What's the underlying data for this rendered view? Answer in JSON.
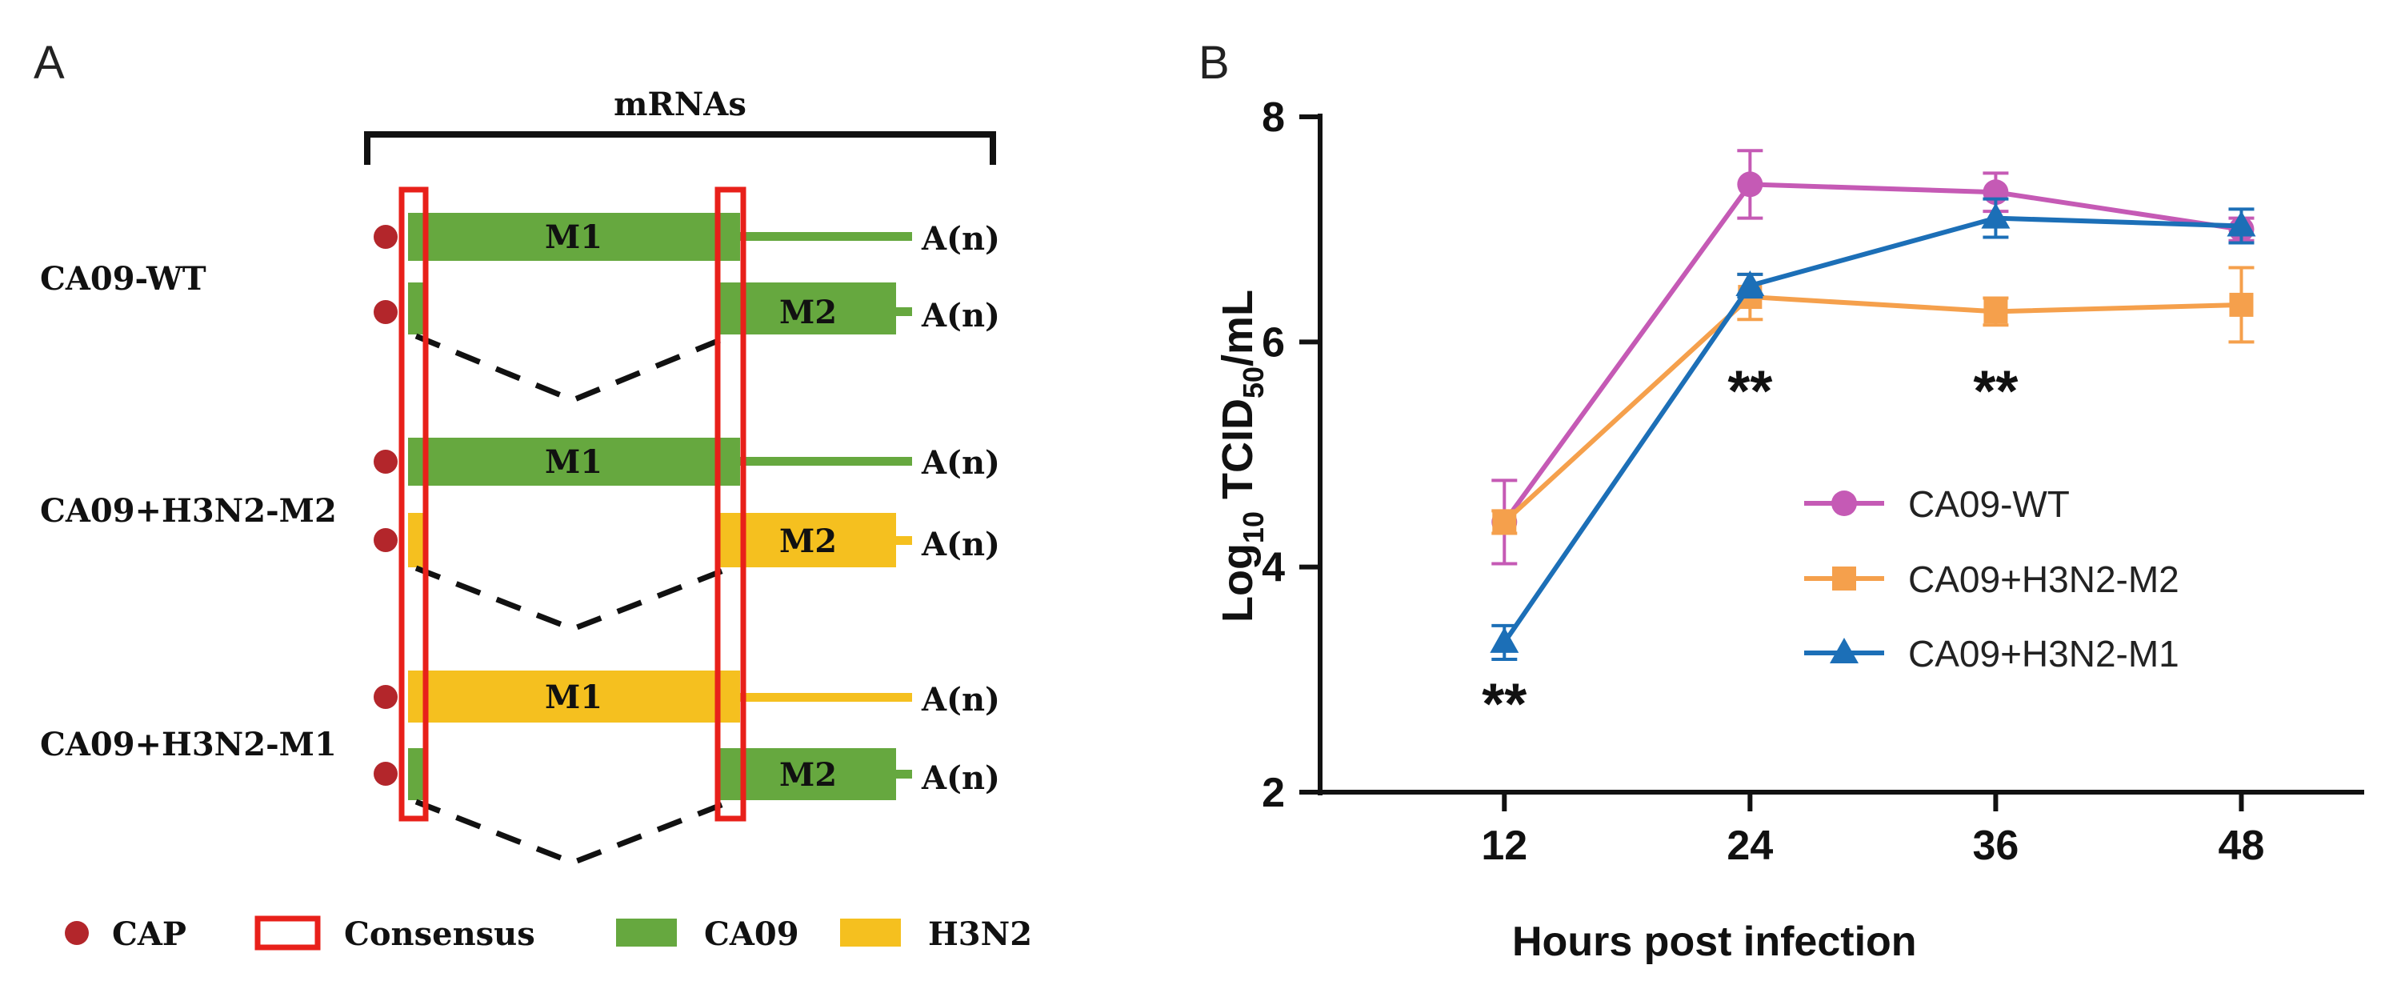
{
  "panel_a": {
    "label": "A",
    "header": "mRNAs",
    "tail": "A(n)",
    "groups": [
      {
        "name": "CA09-WT",
        "m1_label": "M1",
        "m1_source": "ca09",
        "m2_label": "M2",
        "m2_source": "ca09"
      },
      {
        "name": "CA09+H3N2-M2",
        "m1_label": "M1",
        "m1_source": "ca09",
        "m2_label": "M2",
        "m2_source": "h3n2"
      },
      {
        "name": "CA09+H3N2-M1",
        "m1_label": "M1",
        "m1_source": "h3n2",
        "m2_label": "M2",
        "m2_source": "ca09"
      }
    ],
    "legend": {
      "cap": "CAP",
      "consensus": "Consensus",
      "ca09": "CA09",
      "h3n2": "H3N2"
    },
    "colors": {
      "ca09": "#66a83f",
      "h3n2": "#f5c01f",
      "cap": "#b3262b",
      "consensus": "#e8201a"
    }
  },
  "chart_data": {
    "type": "line",
    "panel_label": "B",
    "title": "",
    "xlabel": "Hours post infection",
    "ylabel_main": "Log",
    "ylabel_sub1": "10",
    "ylabel_mid": " TCID",
    "ylabel_sub2": "50",
    "ylabel_end": "/mL",
    "x": [
      12,
      24,
      36,
      48
    ],
    "xticks": [
      "12",
      "24",
      "36",
      "48"
    ],
    "yticks": [
      "2",
      "4",
      "6",
      "8"
    ],
    "ylim": [
      2,
      8
    ],
    "xlim": [
      3,
      54
    ],
    "series": [
      {
        "name": "CA09-WT",
        "marker": "circle",
        "color": "#c55ab5",
        "values": [
          4.4,
          7.4,
          7.33,
          7.0
        ],
        "errors": [
          0.37,
          0.3,
          0.17,
          0.1
        ]
      },
      {
        "name": "CA09+H3N2-M2",
        "marker": "square",
        "color": "#f5a04c",
        "values": [
          4.4,
          6.4,
          6.27,
          6.33
        ],
        "errors": [
          0.1,
          0.2,
          0.12,
          0.33
        ]
      },
      {
        "name": "CA09+H3N2-M1",
        "marker": "triangle",
        "color": "#1c6fb7",
        "values": [
          3.33,
          6.5,
          7.1,
          7.03
        ],
        "errors": [
          0.15,
          0.1,
          0.17,
          0.15
        ]
      }
    ],
    "annotations": [
      {
        "x": 12,
        "y": 2.82,
        "text": "**"
      },
      {
        "x": 24,
        "y": 5.6,
        "text": "**"
      },
      {
        "x": 36,
        "y": 5.6,
        "text": "**"
      }
    ]
  }
}
